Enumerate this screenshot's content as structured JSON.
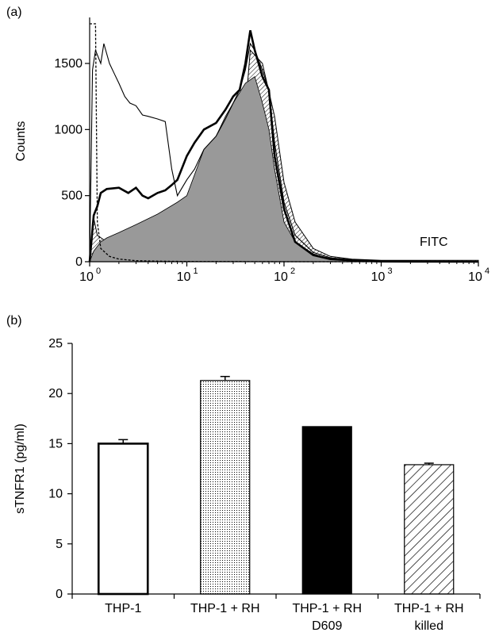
{
  "panels": {
    "a": {
      "label": "(a)",
      "chart_data": {
        "type": "area",
        "ylabel": "Counts",
        "annotation": "FITC",
        "x_scale": "log",
        "xlim": [
          1,
          10000
        ],
        "ylim": [
          0,
          1800
        ],
        "x_ticks": [
          1,
          10,
          100,
          1000,
          10000
        ],
        "x_tick_labels": [
          {
            "base": "10",
            "exp": "0"
          },
          {
            "base": "10",
            "exp": "1"
          },
          {
            "base": "10",
            "exp": "2"
          },
          {
            "base": "10",
            "exp": "3"
          },
          {
            "base": "10",
            "exp": "4"
          }
        ],
        "y_ticks": [
          0,
          500,
          1000,
          1500
        ],
        "y_tick_labels": [
          "0",
          "500",
          "1000",
          "1500"
        ],
        "series": [
          {
            "style": "dashed",
            "color": "#000000",
            "points": [
              [
                1.0,
                1800
              ],
              [
                1.1,
                1800
              ],
              [
                1.15,
                1800
              ],
              [
                1.2,
                300
              ],
              [
                1.3,
                100
              ],
              [
                1.6,
                40
              ],
              [
                2,
                20
              ],
              [
                3,
                8
              ],
              [
                5,
                4
              ],
              [
                10,
                2
              ],
              [
                30,
                1
              ],
              [
                100,
                0
              ],
              [
                10000,
                0
              ]
            ]
          },
          {
            "style": "thin",
            "color": "#000000",
            "points": [
              [
                1.0,
                0
              ],
              [
                1.07,
                1450
              ],
              [
                1.15,
                1600
              ],
              [
                1.3,
                1500
              ],
              [
                1.4,
                1650
              ],
              [
                1.6,
                1500
              ],
              [
                1.8,
                1420
              ],
              [
                2,
                1350
              ],
              [
                2.3,
                1250
              ],
              [
                2.6,
                1200
              ],
              [
                3,
                1180
              ],
              [
                3.5,
                1110
              ],
              [
                4,
                1100
              ],
              [
                5,
                1080
              ],
              [
                6,
                1060
              ],
              [
                7,
                700
              ],
              [
                8,
                500
              ],
              [
                10,
                620
              ],
              [
                12,
                700
              ],
              [
                15,
                850
              ],
              [
                20,
                950
              ],
              [
                25,
                1080
              ],
              [
                30,
                1200
              ],
              [
                35,
                1300
              ],
              [
                40,
                1450
              ],
              [
                45,
                1650
              ],
              [
                50,
                1600
              ],
              [
                60,
                1450
              ],
              [
                70,
                1300
              ],
              [
                80,
                900
              ],
              [
                100,
                450
              ],
              [
                130,
                200
              ],
              [
                200,
                70
              ],
              [
                300,
                30
              ],
              [
                500,
                15
              ],
              [
                1000,
                5
              ],
              [
                10000,
                0
              ]
            ]
          },
          {
            "style": "thick",
            "color": "#000000",
            "points": [
              [
                1.0,
                0
              ],
              [
                1.1,
                350
              ],
              [
                1.2,
                420
              ],
              [
                1.3,
                520
              ],
              [
                1.5,
                550
              ],
              [
                2,
                560
              ],
              [
                2.5,
                520
              ],
              [
                3,
                560
              ],
              [
                3.5,
                500
              ],
              [
                4,
                480
              ],
              [
                5,
                520
              ],
              [
                6,
                540
              ],
              [
                7,
                580
              ],
              [
                8,
                620
              ],
              [
                10,
                800
              ],
              [
                12,
                900
              ],
              [
                15,
                1000
              ],
              [
                20,
                1050
              ],
              [
                25,
                1150
              ],
              [
                30,
                1250
              ],
              [
                35,
                1300
              ],
              [
                40,
                1500
              ],
              [
                45,
                1750
              ],
              [
                50,
                1600
              ],
              [
                60,
                1400
              ],
              [
                70,
                1300
              ],
              [
                80,
                800
              ],
              [
                100,
                400
              ],
              [
                130,
                150
              ],
              [
                200,
                50
              ],
              [
                300,
                20
              ],
              [
                500,
                10
              ],
              [
                1000,
                2
              ],
              [
                10000,
                0
              ]
            ]
          },
          {
            "style": "filled-gray",
            "color": "#999999",
            "points": [
              [
                1.0,
                0
              ],
              [
                1.1,
                80
              ],
              [
                1.3,
                150
              ],
              [
                1.5,
                180
              ],
              [
                2,
                220
              ],
              [
                3,
                280
              ],
              [
                5,
                360
              ],
              [
                8,
                450
              ],
              [
                10,
                500
              ],
              [
                15,
                850
              ],
              [
                20,
                950
              ],
              [
                25,
                1100
              ],
              [
                30,
                1200
              ],
              [
                40,
                1350
              ],
              [
                50,
                1400
              ],
              [
                60,
                1200
              ],
              [
                70,
                1000
              ],
              [
                80,
                700
              ],
              [
                100,
                300
              ],
              [
                130,
                150
              ],
              [
                200,
                60
              ],
              [
                300,
                20
              ],
              [
                500,
                8
              ],
              [
                1000,
                3
              ],
              [
                10000,
                0
              ]
            ]
          },
          {
            "style": "hatched",
            "color": "#000000",
            "points": [
              [
                1.0,
                0
              ],
              [
                1.1,
                330
              ],
              [
                1.2,
                200
              ],
              [
                1.5,
                150
              ],
              [
                2,
                100
              ],
              [
                4,
                50
              ],
              [
                10,
                20
              ],
              [
                20,
                10
              ],
              [
                30,
                10
              ],
              [
                45,
                1600
              ],
              [
                60,
                1500
              ],
              [
                80,
                1100
              ],
              [
                100,
                600
              ],
              [
                130,
                300
              ],
              [
                200,
                100
              ],
              [
                300,
                40
              ],
              [
                500,
                20
              ],
              [
                1000,
                10
              ],
              [
                10000,
                10
              ]
            ]
          }
        ]
      }
    },
    "b": {
      "label": "(b)",
      "chart_data": {
        "type": "bar",
        "ylabel": "sTNFR1 (pg/ml)",
        "ylim": [
          0,
          25
        ],
        "y_ticks": [
          0,
          5,
          10,
          15,
          20,
          25
        ],
        "y_tick_labels": [
          "0",
          "5",
          "10",
          "15",
          "20",
          "25"
        ],
        "categories": [
          {
            "line1": "THP-1",
            "line2": ""
          },
          {
            "line1": "THP-1 + RH",
            "line2": ""
          },
          {
            "line1": "THP-1 + RH",
            "line2": "D609"
          },
          {
            "line1": "THP-1 + RH",
            "line2": "killed"
          }
        ],
        "values": [
          15.0,
          21.3,
          16.7,
          12.9
        ],
        "errors": [
          0.4,
          0.4,
          0.0,
          0.15
        ],
        "fills": [
          "white",
          "dotted",
          "black",
          "hatched"
        ]
      }
    }
  }
}
